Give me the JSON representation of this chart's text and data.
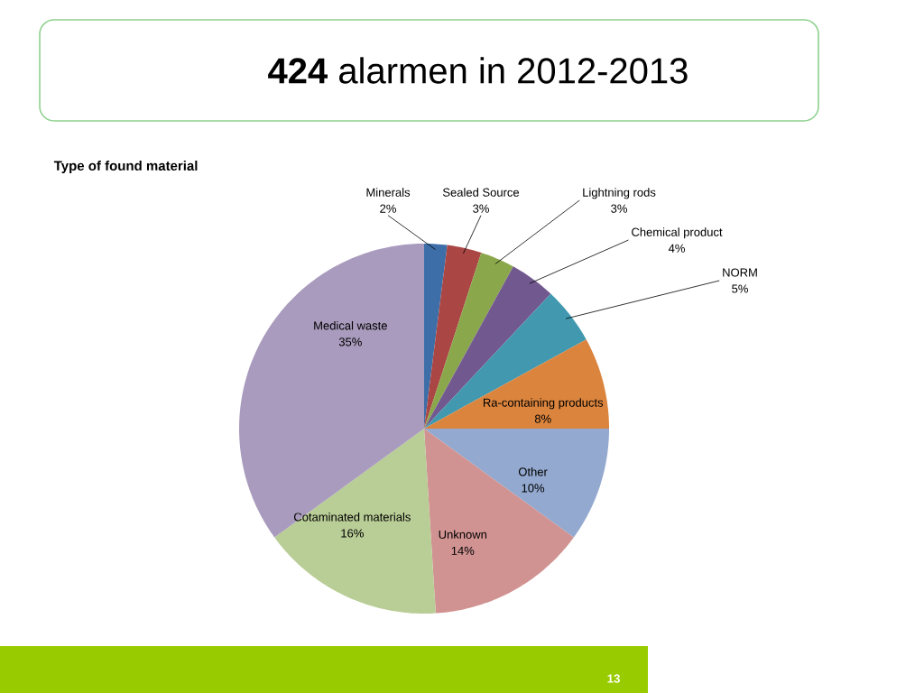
{
  "chart_data": {
    "type": "pie",
    "title": "**424** alarmen in 2012-2013",
    "subtitle": "Type of found material",
    "categories": [
      "Minerals",
      "Sealed Source",
      "Lightning rods",
      "Chemical product",
      "NORM",
      "Ra-containing products",
      "Other",
      "Unknown",
      "Cotaminated materials",
      "Medical waste"
    ],
    "values": [
      2,
      3,
      3,
      4,
      5,
      8,
      10,
      14,
      16,
      35
    ],
    "value_labels": [
      "2%",
      "3%",
      "3%",
      "4%",
      "5%",
      "8%",
      "10%",
      "14%",
      "16%",
      "35%"
    ],
    "colors": [
      "#3d6ea8",
      "#aa4644",
      "#8aa84b",
      "#71588f",
      "#4198af",
      "#db843d",
      "#93a9cf",
      "#d19392",
      "#b9cd96",
      "#a99bbd"
    ],
    "annotations": [
      "13"
    ]
  }
}
